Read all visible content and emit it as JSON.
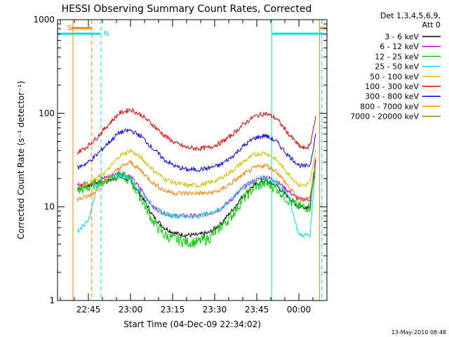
{
  "chart_data": {
    "type": "line",
    "title": "HESSI Observing Summary Count Rates, Corrected",
    "xlabel": "Start Time (04-Dec-09 22:34:02)",
    "ylabel": "Corrected Count Rate (s⁻¹ detector⁻¹)",
    "yscale": "log",
    "ylim": [
      1,
      1000
    ],
    "xlim_minutes": [
      0,
      96
    ],
    "x_ticks": [
      {
        "min": 11,
        "label": "22:45"
      },
      {
        "min": 26,
        "label": "23:00"
      },
      {
        "min": 41,
        "label": "23:15"
      },
      {
        "min": 56,
        "label": "23:30"
      },
      {
        "min": 71,
        "label": "23:45"
      },
      {
        "min": 86,
        "label": "00:00"
      }
    ],
    "y_ticks": [
      {
        "value": 1,
        "label": "1"
      },
      {
        "value": 10,
        "label": "10"
      },
      {
        "value": 100,
        "label": "100"
      },
      {
        "value": 1000,
        "label": "1000"
      }
    ],
    "legend_header": [
      "Det 1,3,4,5,6,9,",
      "Att 0"
    ],
    "legend_position": "right",
    "flag_labels": {
      "saa": "S",
      "night": "N"
    },
    "x": [
      7,
      11,
      14,
      18,
      22,
      26,
      30,
      34,
      38,
      42,
      46,
      50,
      54,
      58,
      62,
      66,
      70,
      74,
      78,
      82,
      86,
      88,
      90,
      92
    ],
    "series": [
      {
        "name": "3 - 6 keV",
        "color": "#000000",
        "values": [
          16,
          17,
          18,
          19,
          21,
          19,
          13,
          8,
          6,
          5.2,
          5,
          5,
          5.3,
          6.5,
          9,
          13,
          17,
          19,
          17,
          13,
          10,
          10,
          10,
          30
        ]
      },
      {
        "name": "6 - 12 keV",
        "color": "#d000d0",
        "values": [
          17,
          18,
          19,
          21,
          23,
          21,
          15,
          10,
          8.5,
          8,
          8,
          8,
          8.5,
          9.5,
          12,
          16,
          19,
          21,
          19,
          15,
          12,
          12,
          12,
          33
        ]
      },
      {
        "name": "12 - 25 keV",
        "color": "#00d000",
        "values": [
          15,
          16,
          18,
          20,
          22,
          19,
          12,
          7,
          5,
          4.5,
          4.2,
          4.2,
          4.6,
          6,
          8,
          12,
          16,
          18,
          16,
          12,
          10,
          10,
          10,
          28
        ]
      },
      {
        "name": "25 - 50 keV",
        "color": "#00e0e0",
        "values": [
          5.5,
          7,
          16,
          20,
          22,
          20,
          14,
          10,
          8.5,
          8,
          8,
          8,
          8.5,
          9.5,
          12,
          16,
          19,
          21,
          18,
          14,
          5,
          5,
          5,
          30
        ]
      },
      {
        "name": "50 - 100 keV",
        "color": "#d0c000",
        "values": [
          16,
          18,
          20,
          25,
          35,
          40,
          33,
          25,
          20,
          18,
          17,
          17,
          18,
          20,
          24,
          30,
          36,
          38,
          32,
          23,
          17,
          17,
          18,
          40
        ]
      },
      {
        "name": "100 - 300 keV",
        "color": "#e00000",
        "values": [
          38,
          45,
          55,
          75,
          100,
          110,
          95,
          75,
          58,
          48,
          43,
          42,
          43,
          48,
          58,
          75,
          92,
          100,
          88,
          62,
          45,
          42,
          45,
          95
        ]
      },
      {
        "name": "300 - 800 keV",
        "color": "#0000e0",
        "values": [
          26,
          30,
          36,
          48,
          62,
          66,
          56,
          42,
          32,
          27,
          25,
          25,
          26,
          28,
          34,
          44,
          54,
          58,
          50,
          36,
          28,
          27,
          28,
          60
        ]
      },
      {
        "name": "800 - 7000 keV",
        "color": "#ff8000",
        "values": [
          12,
          13,
          15,
          20,
          26,
          30,
          24,
          18,
          15,
          14,
          14,
          14,
          14,
          15,
          18,
          22,
          26,
          28,
          24,
          17,
          12,
          12,
          13,
          30
        ]
      },
      {
        "name": "7000 - 20000 keV",
        "color": "#a08000",
        "values": [
          1,
          1,
          1,
          1,
          1,
          1,
          1,
          1,
          1,
          1,
          1,
          1,
          1,
          1,
          1,
          1,
          1,
          1,
          1,
          1,
          1,
          1,
          1,
          1
        ]
      }
    ],
    "flags": {
      "saa_color": "#ff8000",
      "night_color": "#00e0e0",
      "saa_segments": [
        [
          5,
          12
        ],
        [
          93.6,
          96
        ]
      ],
      "night_segments": [
        [
          0,
          15.3
        ],
        [
          76.5,
          95
        ]
      ],
      "saa_lines": [
        [
          5.5,
          "solid"
        ],
        [
          12.2,
          "dashed"
        ],
        [
          93.4,
          "solid"
        ]
      ],
      "night_lines": [
        [
          15.5,
          "dashed"
        ],
        [
          76.3,
          "solid"
        ],
        [
          94.2,
          "dashed"
        ]
      ]
    }
  },
  "footer": {
    "timestamp": "13-May-2010 08:48"
  }
}
